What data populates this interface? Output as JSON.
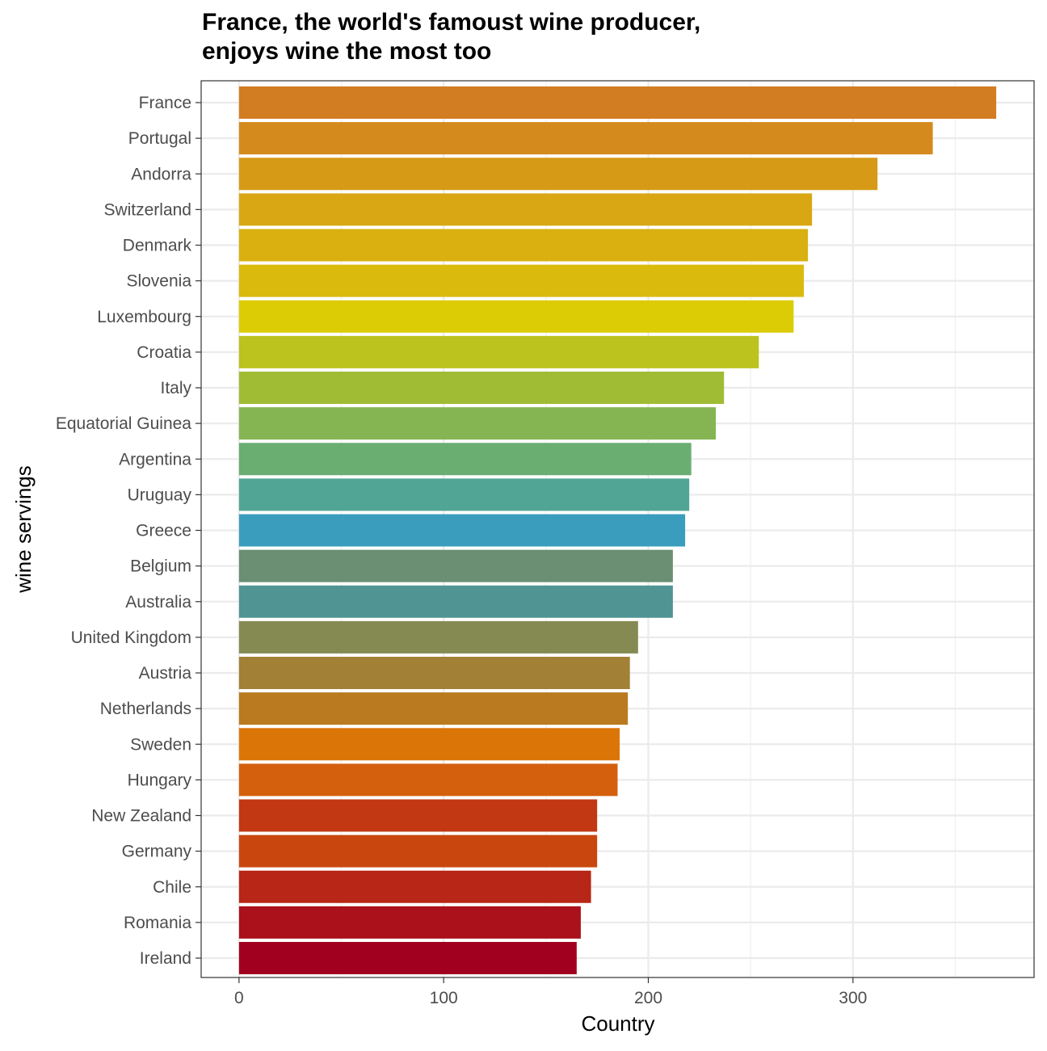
{
  "chart_data": {
    "type": "bar",
    "orientation": "horizontal",
    "title": "France, the world's famoust wine producer,\n enjoys wine the most too",
    "xlabel": "Country",
    "ylabel": "wine servings",
    "xlim": [
      -18.5,
      388.5
    ],
    "xticks": [
      0,
      100,
      200,
      300
    ],
    "grid": true,
    "legend": "none",
    "categories": [
      "France",
      "Portugal",
      "Andorra",
      "Switzerland",
      "Denmark",
      "Slovenia",
      "Luxembourg",
      "Croatia",
      "Italy",
      "Equatorial Guinea",
      "Argentina",
      "Uruguay",
      "Greece",
      "Belgium",
      "Australia",
      "United Kingdom",
      "Austria",
      "Netherlands",
      "Sweden",
      "Hungary",
      "New Zealand",
      "Germany",
      "Chile",
      "Romania",
      "Ireland"
    ],
    "values": [
      370,
      339,
      312,
      280,
      278,
      276,
      271,
      254,
      237,
      233,
      221,
      220,
      218,
      212,
      212,
      195,
      191,
      190,
      186,
      185,
      175,
      175,
      172,
      167,
      165
    ],
    "colors": [
      "#D27D21",
      "#D48A1C",
      "#D69A17",
      "#D8A713",
      "#D9B00F",
      "#DBBA0E",
      "#DCCC05",
      "#BCC21E",
      "#A0BC35",
      "#85B553",
      "#6AAE72",
      "#51A594",
      "#3A9DBD",
      "#6A8F72",
      "#509494",
      "#848A52",
      "#A28035",
      "#BA7A1F",
      "#DC7508",
      "#D4600D",
      "#C23813",
      "#C9470F",
      "#B72616",
      "#AA111A",
      "#A1001E"
    ]
  }
}
